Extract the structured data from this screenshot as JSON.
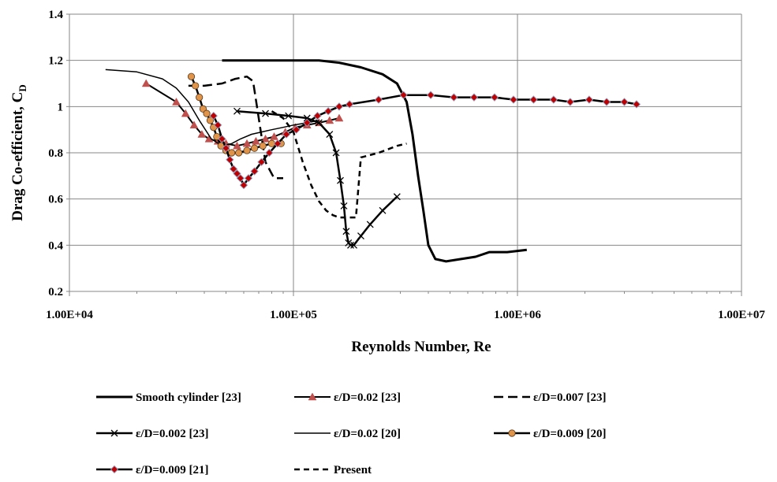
{
  "chart_data": {
    "type": "line",
    "xlabel": "Reynolds Number, Re",
    "ylabel_main": "Drag Co-efficient, C",
    "ylabel_sub": "D",
    "x_scale": "log",
    "xlim": [
      10000,
      10000000
    ],
    "ylim": [
      0.2,
      1.4
    ],
    "x_ticks": [
      10000,
      100000,
      1000000,
      10000000
    ],
    "x_tick_labels": [
      "1.00E+04",
      "1.00E+05",
      "1.00E+06",
      "1.00E+07"
    ],
    "y_ticks": [
      0.2,
      0.4,
      0.6,
      0.8,
      1.0,
      1.2,
      1.4
    ],
    "y_tick_labels": [
      "0.2",
      "0.4",
      "0.6",
      "0.8",
      "1",
      "1.2",
      "1.4"
    ],
    "grid": "horizontal",
    "legend_position": "bottom",
    "series": [
      {
        "name": "Smooth cylinder [23]",
        "style": "thick-solid",
        "color": "#000000",
        "x": [
          48000,
          60000,
          80000,
          100000,
          130000,
          160000,
          200000,
          250000,
          290000,
          320000,
          340000,
          360000,
          380000,
          400000,
          430000,
          480000,
          560000,
          650000,
          750000,
          900000,
          1100000
        ],
        "y": [
          1.2,
          1.2,
          1.2,
          1.2,
          1.2,
          1.19,
          1.17,
          1.14,
          1.1,
          1.02,
          0.88,
          0.7,
          0.55,
          0.4,
          0.34,
          0.33,
          0.34,
          0.35,
          0.37,
          0.37,
          0.38
        ]
      },
      {
        "name": "ε/D=0.02 [23]",
        "style": "triangle",
        "color": "#c0504d",
        "x": [
          22000,
          30000,
          33000,
          36000,
          39000,
          42000,
          46000,
          50000,
          56000,
          62000,
          68000,
          75000,
          82000,
          92000,
          102000,
          115000,
          130000,
          145000,
          160000
        ],
        "y": [
          1.1,
          1.02,
          0.97,
          0.92,
          0.88,
          0.86,
          0.85,
          0.84,
          0.83,
          0.84,
          0.85,
          0.86,
          0.87,
          0.89,
          0.91,
          0.92,
          0.93,
          0.94,
          0.95
        ]
      },
      {
        "name": "ε/D=0.007 [23]",
        "style": "long-dash",
        "color": "#000000",
        "x": [
          34000,
          40000,
          48000,
          55000,
          62000,
          66000,
          70000,
          75000,
          82000,
          90000
        ],
        "y": [
          1.09,
          1.09,
          1.1,
          1.12,
          1.13,
          1.11,
          0.95,
          0.76,
          0.69,
          0.69
        ]
      },
      {
        "name": "ε/D=0.002 [23]",
        "style": "cross",
        "color": "#000000",
        "x": [
          56000,
          75000,
          95000,
          115000,
          130000,
          145000,
          155000,
          162000,
          168000,
          172000,
          176000,
          180000,
          186000,
          200000,
          220000,
          250000,
          290000
        ],
        "y": [
          0.98,
          0.97,
          0.96,
          0.95,
          0.93,
          0.88,
          0.8,
          0.68,
          0.57,
          0.46,
          0.41,
          0.4,
          0.4,
          0.44,
          0.49,
          0.55,
          0.61
        ]
      },
      {
        "name": "ε/D=0.02 [20]",
        "style": "thin-solid",
        "color": "#000000",
        "x": [
          14500,
          20000,
          26000,
          30000,
          34000,
          38000,
          43000,
          48000,
          53000,
          58000,
          65000,
          72000,
          80000,
          90000,
          100000,
          115000,
          130000
        ],
        "y": [
          1.16,
          1.15,
          1.12,
          1.08,
          1.02,
          0.94,
          0.86,
          0.83,
          0.84,
          0.86,
          0.88,
          0.89,
          0.9,
          0.91,
          0.92,
          0.93,
          0.94
        ]
      },
      {
        "name": "ε/D=0.009 [20]",
        "style": "circle",
        "color": "#e0944a",
        "x": [
          35000,
          36500,
          38000,
          39500,
          41000,
          42500,
          44000,
          45500,
          47500,
          50000,
          53000,
          57000,
          62000,
          67000,
          73000,
          80000,
          88000
        ],
        "y": [
          1.13,
          1.09,
          1.04,
          0.99,
          0.97,
          0.94,
          0.91,
          0.87,
          0.83,
          0.81,
          0.8,
          0.8,
          0.81,
          0.82,
          0.83,
          0.84,
          0.84
        ]
      },
      {
        "name": "ε/D=0.009 [21]",
        "style": "diamond",
        "color": "#c00000",
        "x": [
          44000,
          46000,
          48000,
          50000,
          52000,
          54000,
          56000,
          58000,
          60000,
          63000,
          67000,
          72000,
          78000,
          85000,
          93000,
          103000,
          115000,
          128000,
          143000,
          160000,
          178000,
          240000,
          310000,
          410000,
          520000,
          640000,
          790000,
          960000,
          1180000,
          1450000,
          1720000,
          2090000,
          2500000,
          3000000,
          3400000
        ],
        "y": [
          0.96,
          0.92,
          0.86,
          0.82,
          0.77,
          0.73,
          0.71,
          0.69,
          0.66,
          0.69,
          0.72,
          0.76,
          0.8,
          0.84,
          0.88,
          0.9,
          0.93,
          0.96,
          0.98,
          1.0,
          1.01,
          1.03,
          1.05,
          1.05,
          1.04,
          1.04,
          1.04,
          1.03,
          1.03,
          1.03,
          1.02,
          1.03,
          1.02,
          1.02,
          1.01
        ]
      },
      {
        "name": "Present",
        "style": "short-dash",
        "color": "#000000",
        "x": [
          80000,
          90000,
          100000,
          110000,
          120000,
          130000,
          140000,
          150000,
          160000,
          165000,
          170000,
          180000,
          190000,
          200000,
          240000,
          290000,
          320000
        ],
        "y": [
          0.98,
          0.95,
          0.89,
          0.76,
          0.66,
          0.59,
          0.55,
          0.53,
          0.52,
          0.52,
          0.52,
          0.52,
          0.52,
          0.78,
          0.8,
          0.83,
          0.84
        ]
      }
    ]
  }
}
